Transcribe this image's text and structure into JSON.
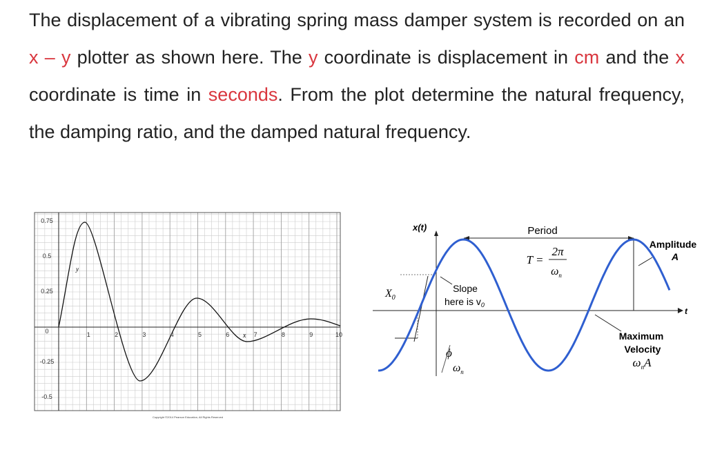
{
  "problem": {
    "segments": [
      {
        "text": "The displacement of a vibrating spring mass damper system is recorded on an "
      },
      {
        "text": "x – y",
        "color": "#d9363e"
      },
      {
        "text": " plotter as shown here. The "
      },
      {
        "text": "y",
        "color": "#d9363e"
      },
      {
        "text": " coordinate is displacement in "
      },
      {
        "text": "cm",
        "color": "#d9363e"
      },
      {
        "text": " and the "
      },
      {
        "text": "x",
        "color": "#d9363e"
      },
      {
        "text": " coordinate is time in "
      },
      {
        "text": "seconds",
        "color": "#d9363e"
      },
      {
        "text": ". From the plot determine the natural frequency, the damping ratio, and the damped natural frequency."
      }
    ]
  },
  "left_plot": {
    "yticks": [
      "0.75",
      "0.5",
      "0.25",
      "0",
      "-0.25",
      "-0.5"
    ],
    "xticks": [
      "1",
      "2",
      "3",
      "4",
      "5",
      "6",
      "7",
      "8",
      "9",
      "10"
    ],
    "x_label": "x",
    "y_label": "y",
    "copyright": "Copyright ©2014 Pearson Education, All Rights Reserved"
  },
  "right_diagram": {
    "x_axis_label": "x(t)",
    "t_label": "t",
    "period_label": "Period",
    "period_formula": {
      "lhs": "T =",
      "numerator": "2π",
      "denominator": "ω",
      "denominator_sub": "n"
    },
    "amplitude_label": "Amplitude",
    "amplitude_symbol": "A",
    "x0_label": {
      "base": "X",
      "sub": "0"
    },
    "slope_label": [
      "Slope",
      "here is v"
    ],
    "slope_sub": "0",
    "phase_label": {
      "numerator": "ϕ",
      "denominator": "ω",
      "sub": "n"
    },
    "velocity_label": [
      "Maximum",
      "Velocity"
    ],
    "velocity_formula": {
      "base": "ω",
      "sub": "n",
      "tail": "A"
    }
  }
}
